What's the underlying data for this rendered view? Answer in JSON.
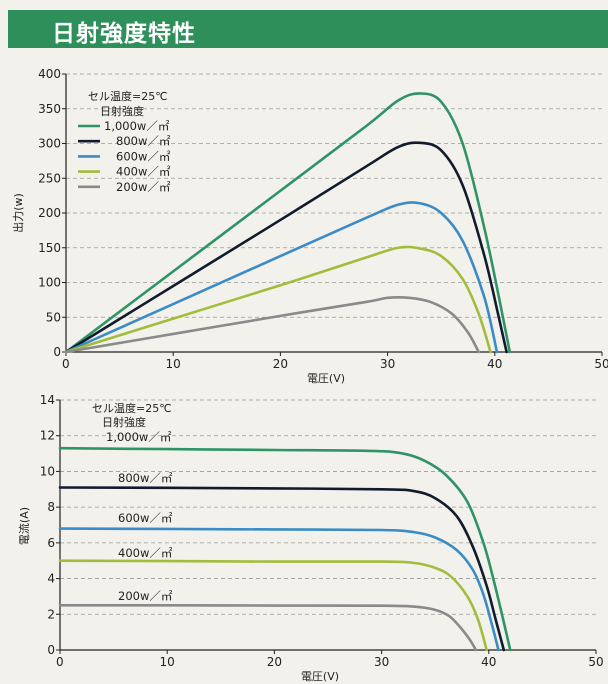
{
  "header": {
    "title": "日射強度特性"
  },
  "colors": {
    "header_bg": "#2e8f5a",
    "s1000": "#2e9466",
    "s800": "#121b2e",
    "s600": "#3b8cc6",
    "s400": "#a2bd3c",
    "s200": "#8a8a8a"
  },
  "chart_data": [
    {
      "type": "line",
      "xlabel": "電圧(V)",
      "ylabel": "出力(w)",
      "xlim": [
        0,
        50
      ],
      "ylim": [
        0,
        400
      ],
      "xticks": [
        0,
        10,
        20,
        30,
        40,
        50
      ],
      "yticks": [
        0,
        50,
        100,
        150,
        200,
        250,
        300,
        350,
        400
      ],
      "grid": "horizontal-dashed",
      "legend_placement": "top-left",
      "legend_title": [
        "セル温度=25℃",
        "日射強度"
      ],
      "series": [
        {
          "name": "1,000w／㎡",
          "color": "#2e9466",
          "x": [
            0,
            10,
            20,
            28,
            31,
            33,
            35,
            37,
            39,
            40.5,
            41.4
          ],
          "y": [
            0,
            116,
            232,
            325,
            362,
            372,
            360,
            300,
            180,
            70,
            0
          ]
        },
        {
          "name": "800w／㎡",
          "color": "#121b2e",
          "x": [
            0,
            10,
            20,
            28,
            31,
            33,
            35,
            37,
            39,
            40.3,
            41.1
          ],
          "y": [
            0,
            95,
            190,
            267,
            295,
            301,
            290,
            240,
            140,
            55,
            0
          ]
        },
        {
          "name": "600w／㎡",
          "color": "#3b8cc6",
          "x": [
            0,
            10,
            20,
            28,
            31,
            33,
            35,
            37,
            39,
            40.2
          ],
          "y": [
            0,
            69,
            138,
            193,
            212,
            214,
            200,
            160,
            80,
            0
          ]
        },
        {
          "name": "400w／㎡",
          "color": "#a2bd3c",
          "x": [
            0,
            10,
            20,
            28,
            31,
            33,
            35,
            37,
            38.5,
            39.6
          ],
          "y": [
            0,
            48,
            96,
            136,
            150,
            149,
            138,
            105,
            55,
            0
          ]
        },
        {
          "name": "200w／㎡",
          "color": "#8a8a8a",
          "x": [
            0,
            10,
            20,
            28,
            30,
            32,
            34,
            36,
            37.5,
            38.5
          ],
          "y": [
            0,
            26,
            52,
            72,
            78,
            78,
            72,
            55,
            28,
            0
          ]
        }
      ]
    },
    {
      "type": "line",
      "xlabel": "電圧(V)",
      "ylabel": "電流(A)",
      "xlim": [
        0,
        50
      ],
      "ylim": [
        0,
        14
      ],
      "xticks": [
        0,
        10,
        20,
        30,
        40,
        50
      ],
      "yticks": [
        0,
        2,
        4,
        6,
        8,
        10,
        12,
        14
      ],
      "grid": "horizontal-dashed",
      "legend_title": [
        "セル温度=25℃",
        "日射強度"
      ],
      "series": [
        {
          "name": "1,000w／㎡",
          "color": "#2e9466",
          "x": [
            0,
            10,
            20,
            29,
            32,
            34,
            36,
            38,
            39.5,
            40.5,
            41.5,
            42.0
          ],
          "y": [
            11.3,
            11.25,
            11.2,
            11.15,
            11.0,
            10.6,
            9.8,
            8.3,
            6.0,
            3.8,
            1.3,
            0
          ]
        },
        {
          "name": "800w／㎡",
          "color": "#121b2e",
          "x": [
            0,
            10,
            20,
            30,
            33,
            35,
            37,
            38.5,
            39.8,
            40.6,
            41.4
          ],
          "y": [
            9.1,
            9.08,
            9.05,
            9.0,
            8.9,
            8.5,
            7.5,
            5.8,
            3.6,
            1.8,
            0
          ]
        },
        {
          "name": "600w／㎡",
          "color": "#3b8cc6",
          "x": [
            0,
            10,
            20,
            30,
            33,
            35,
            37,
            38.5,
            39.5,
            40.3,
            40.9
          ],
          "y": [
            6.8,
            6.78,
            6.75,
            6.72,
            6.6,
            6.3,
            5.6,
            4.5,
            3.1,
            1.4,
            0
          ]
        },
        {
          "name": "400w／㎡",
          "color": "#a2bd3c",
          "x": [
            0,
            10,
            20,
            30,
            33,
            35,
            36.5,
            38,
            39,
            39.8
          ],
          "y": [
            5.0,
            4.98,
            4.95,
            4.95,
            4.88,
            4.6,
            4.1,
            3.0,
            1.7,
            0
          ]
        },
        {
          "name": "200w／㎡",
          "color": "#8a8a8a",
          "x": [
            0,
            10,
            20,
            30,
            33,
            35,
            36.3,
            37.3,
            38.2,
            38.8
          ],
          "y": [
            2.5,
            2.5,
            2.49,
            2.48,
            2.43,
            2.25,
            1.9,
            1.3,
            0.6,
            0
          ]
        }
      ]
    }
  ]
}
